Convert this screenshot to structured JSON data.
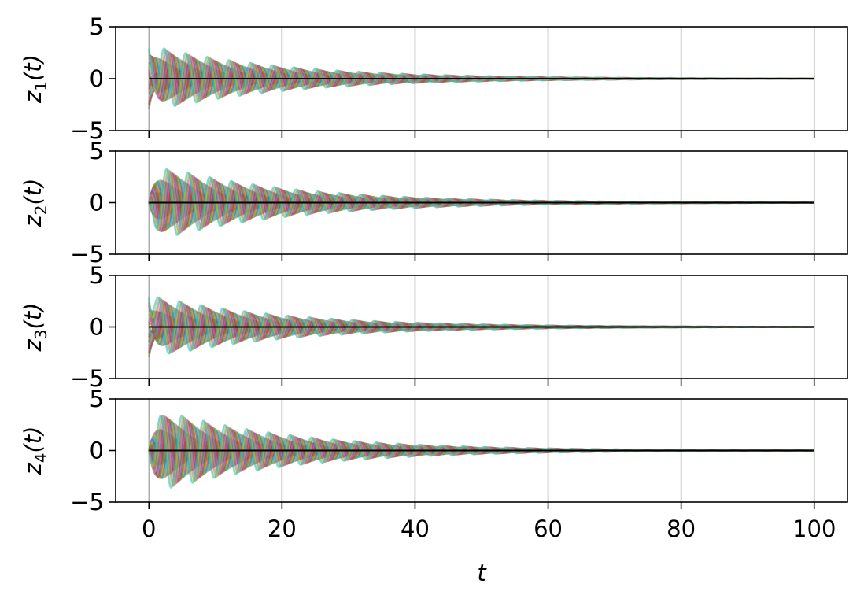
{
  "chart_data": [
    {
      "type": "line",
      "ylabel_main": "z",
      "ylabel_sub": "1",
      "ylabel_tail": "(t)",
      "ylim": [
        -5,
        5
      ],
      "yticks": [
        -5,
        0,
        5
      ],
      "ytick_labels": [
        "−5",
        "0",
        "5"
      ],
      "xlim": [
        -5,
        105
      ],
      "xticks": [
        0,
        20,
        40,
        60,
        80,
        100
      ],
      "x_range": [
        0,
        100
      ],
      "grid": "x-only",
      "zero_line": true,
      "ensemble": {
        "initial_amplitude": 3.0,
        "peak_envelope": 3.0,
        "decay_rate": 0.05,
        "period": 3.25,
        "start_value": "spread",
        "num_traces": 40
      }
    },
    {
      "type": "line",
      "ylabel_main": "z",
      "ylabel_sub": "2",
      "ylabel_tail": "(t)",
      "ylim": [
        -5,
        5
      ],
      "yticks": [
        -5,
        0,
        5
      ],
      "ytick_labels": [
        "−5",
        "0",
        "5"
      ],
      "xlim": [
        -5,
        105
      ],
      "xticks": [
        0,
        20,
        40,
        60,
        80,
        100
      ],
      "x_range": [
        0,
        100
      ],
      "grid": "x-only",
      "zero_line": true,
      "ensemble": {
        "initial_amplitude": 0.0,
        "peak_envelope": 3.6,
        "decay_rate": 0.05,
        "period": 3.25,
        "start_value": "zero",
        "num_traces": 40
      }
    },
    {
      "type": "line",
      "ylabel_main": "z",
      "ylabel_sub": "3",
      "ylabel_tail": "(t)",
      "ylim": [
        -5,
        5
      ],
      "yticks": [
        -5,
        0,
        5
      ],
      "ytick_labels": [
        "−5",
        "0",
        "5"
      ],
      "xlim": [
        -5,
        105
      ],
      "xticks": [
        0,
        20,
        40,
        60,
        80,
        100
      ],
      "x_range": [
        0,
        100
      ],
      "grid": "x-only",
      "zero_line": true,
      "ensemble": {
        "initial_amplitude": 3.0,
        "peak_envelope": 2.9,
        "decay_rate": 0.05,
        "period": 3.25,
        "start_value": "spread",
        "num_traces": 40
      }
    },
    {
      "type": "line",
      "ylabel_main": "z",
      "ylabel_sub": "4",
      "ylabel_tail": "(t)",
      "xlabel": "t",
      "ylim": [
        -5,
        5
      ],
      "yticks": [
        -5,
        0,
        5
      ],
      "ytick_labels": [
        "−5",
        "0",
        "5"
      ],
      "xlim": [
        -5,
        105
      ],
      "xticks": [
        0,
        20,
        40,
        60,
        80,
        100
      ],
      "xtick_labels": [
        "0",
        "20",
        "40",
        "60",
        "80",
        "100"
      ],
      "x_range": [
        0,
        100
      ],
      "grid": "x-only",
      "zero_line": true,
      "ensemble": {
        "initial_amplitude": 0.0,
        "peak_envelope": 4.0,
        "decay_rate": 0.05,
        "period": 3.25,
        "start_value": "zero",
        "num_traces": 40
      }
    }
  ],
  "colors": {
    "trace_palette": [
      "#1f77b4",
      "#ff7f0e",
      "#2ca02c",
      "#d62728",
      "#9467bd",
      "#8c564b",
      "#e377c2",
      "#7f7f7f",
      "#bcbd22",
      "#17becf"
    ],
    "axis": "#000000",
    "grid": "#b0b0b0",
    "zero_line": "#000000"
  }
}
